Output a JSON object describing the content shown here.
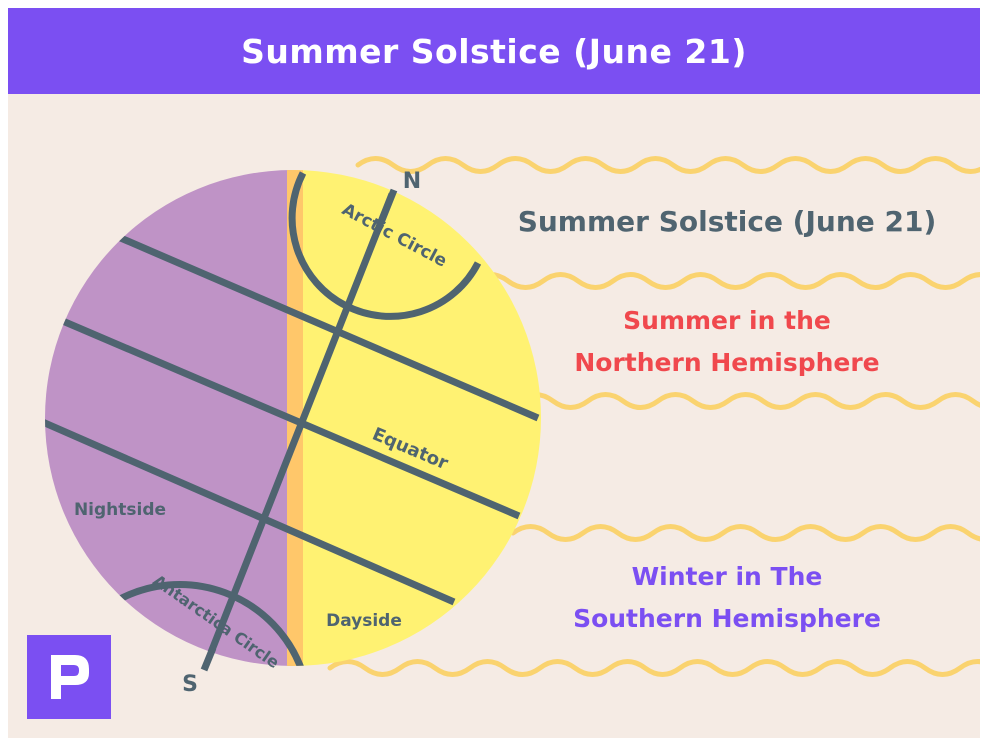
{
  "header": {
    "title": "Summer Solstice (June 21)"
  },
  "diagram": {
    "north_label": "N",
    "south_label": "S",
    "arctic_label": "Arctic Circle",
    "antarctic_label": "Antarctica Circle",
    "equator_label": "Equator",
    "nightside_label": "Nightside",
    "dayside_label": "Dayside"
  },
  "info": {
    "title": "Summer Solstice (June 21)",
    "northern": {
      "line1": "Summer in the",
      "line2": "Northern Hemisphere",
      "color": "#f0484d"
    },
    "southern": {
      "line1": "Winter in The",
      "line2": "Southern Hemisphere",
      "color": "#7b4ff2"
    }
  },
  "colors": {
    "night": "#bf93c6",
    "day": "#fff272",
    "terminator": "#ffc76a",
    "lines": "#4f6470",
    "waves": "#fad36f",
    "accent": "#7b4ff2"
  },
  "logo": {
    "icon": "p-logo-icon"
  }
}
